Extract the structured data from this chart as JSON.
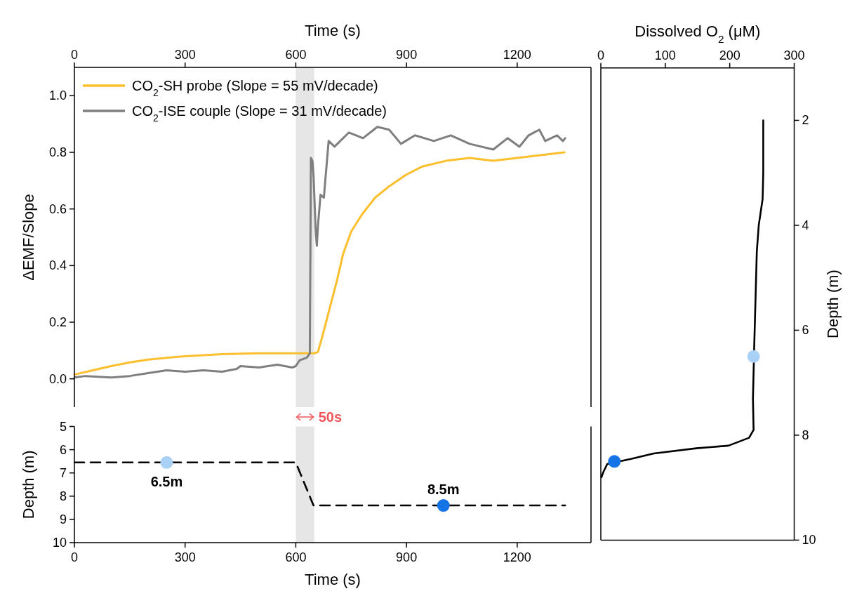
{
  "chart_data": [
    {
      "type": "line",
      "xlabel": "Time (s)",
      "ylabel": "ΔEMF/Slope",
      "xlim": [
        0,
        1400
      ],
      "xticks": [
        0,
        300,
        600,
        900,
        1200
      ],
      "ylim": [
        -0.1,
        1.1
      ],
      "yticks": [
        {
          "value": 0,
          "label": "0.0"
        },
        {
          "value": 0.2,
          "label": "0.2"
        },
        {
          "value": 0.4,
          "label": "0.4"
        },
        {
          "value": 0.6,
          "label": "0.6"
        },
        {
          "value": 0.8,
          "label": "0.8"
        },
        {
          "value": 1,
          "label": "1.0"
        }
      ],
      "legend": "top left",
      "bands": [
        {
          "axis": "x",
          "from": 600,
          "to": 650,
          "label": "50s",
          "color": "#e6e6e6"
        }
      ],
      "series": [
        {
          "name": "CO$_{2}$-SH probe (Slope = 55 mV/decade)",
          "color": "#fdbf2d",
          "x": [
            0,
            50,
            100,
            150,
            200,
            300,
            400,
            500,
            600,
            650,
            660,
            672,
            686,
            696,
            712,
            728,
            750,
            779,
            815,
            853,
            898,
            943,
            1007,
            1071,
            1135,
            1200,
            1264,
            1328
          ],
          "values": [
            0.015,
            0.03,
            0.045,
            0.058,
            0.068,
            0.08,
            0.087,
            0.09,
            0.09,
            0.09,
            0.095,
            0.15,
            0.22,
            0.27,
            0.35,
            0.44,
            0.52,
            0.58,
            0.64,
            0.68,
            0.72,
            0.75,
            0.77,
            0.78,
            0.77,
            0.78,
            0.79,
            0.8
          ]
        },
        {
          "name": "CO$_{2}$-ISE couple (Slope = 31 mV/decade)",
          "color": "#7f7f7f",
          "x": [
            0,
            30,
            100,
            150,
            200,
            250,
            300,
            350,
            400,
            440,
            450,
            500,
            550,
            590,
            600,
            610,
            630,
            638,
            641,
            645,
            648,
            654,
            657,
            660,
            667,
            676,
            689,
            705,
            744,
            782,
            821,
            853,
            885,
            923,
            974,
            1020,
            1071,
            1135,
            1174,
            1206,
            1231,
            1260,
            1276,
            1308,
            1324,
            1330
          ],
          "values": [
            0.005,
            0.01,
            0.005,
            0.01,
            0.02,
            0.03,
            0.025,
            0.03,
            0.025,
            0.035,
            0.045,
            0.04,
            0.05,
            0.04,
            0.045,
            0.065,
            0.075,
            0.09,
            0.78,
            0.77,
            0.72,
            0.52,
            0.47,
            0.54,
            0.65,
            0.64,
            0.84,
            0.82,
            0.87,
            0.85,
            0.89,
            0.88,
            0.83,
            0.86,
            0.84,
            0.86,
            0.83,
            0.81,
            0.85,
            0.82,
            0.86,
            0.88,
            0.84,
            0.86,
            0.84,
            0.85
          ]
        }
      ]
    },
    {
      "type": "line",
      "xlabel": "Time (s)",
      "ylabel": "Depth (m)",
      "xlim": [
        0,
        1400
      ],
      "xticks": [
        0,
        300,
        600,
        900,
        1200
      ],
      "ylim": [
        10,
        5
      ],
      "yticks": [
        5,
        6,
        7,
        8,
        9,
        10
      ],
      "bands": [
        {
          "axis": "x",
          "from": 600,
          "to": 650,
          "color": "#e6e6e6"
        }
      ],
      "annotations": [
        {
          "text": "6.5m",
          "x": 250,
          "y": 6.55
        },
        {
          "text": "8.5m",
          "x": 1000,
          "y": 8.4
        }
      ],
      "series": [
        {
          "color": "#000000",
          "line_style": "dashed",
          "x": [
            0,
            600,
            648,
            1330
          ],
          "values": [
            6.55,
            6.55,
            8.4,
            8.4
          ]
        },
        {
          "type": "scatter",
          "marker": "circle",
          "x": [
            250,
            1000
          ],
          "values": [
            6.55,
            8.4
          ],
          "colors": [
            "#a9d0f5",
            "#1473e6"
          ]
        }
      ]
    },
    {
      "type": "line",
      "xlabel": "Dissolved O$_{2}$ (μM)",
      "ylabel": "Depth (m)",
      "xlim": [
        0,
        300
      ],
      "xticks": [
        0,
        100,
        200,
        300
      ],
      "ylim": [
        10,
        1
      ],
      "yticks": [
        2,
        4,
        6,
        8,
        10
      ],
      "series": [
        {
          "color": "#000000",
          "x": [
            252,
            252,
            251,
            245,
            242,
            240,
            238,
            236,
            237,
            230,
            198,
            148,
            82,
            48,
            10,
            4,
            1
          ],
          "values": [
            2.0,
            3.0,
            3.5,
            4.0,
            4.5,
            5.4,
            6.3,
            7.3,
            7.9,
            8.05,
            8.2,
            8.25,
            8.35,
            8.45,
            8.55,
            8.7,
            8.8
          ]
        },
        {
          "type": "scatter",
          "marker": "circle",
          "x": [
            237,
            21
          ],
          "values": [
            6.5,
            8.5
          ],
          "colors": [
            "#a9d0f5",
            "#1473e6"
          ]
        }
      ]
    }
  ]
}
